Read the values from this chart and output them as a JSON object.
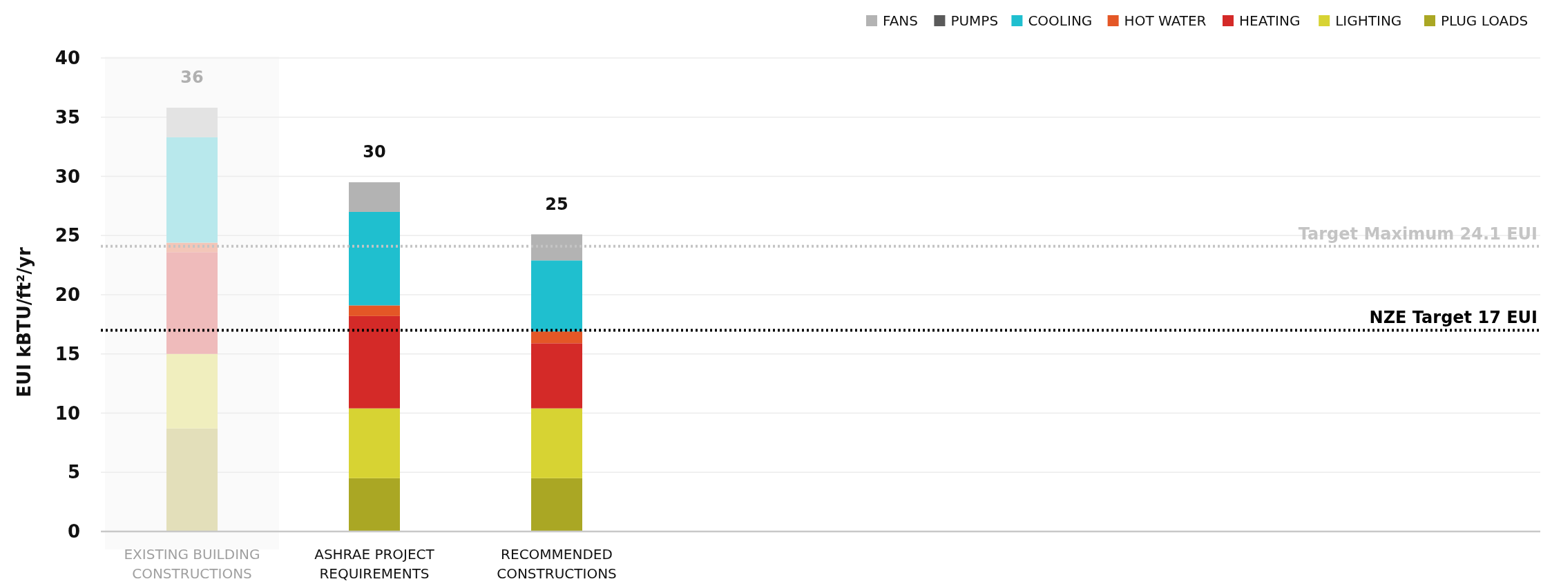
{
  "chart_data": {
    "type": "bar",
    "stacked": true,
    "ylabel": "EUI kBTU/ft²/yr",
    "categories": [
      "EXISTING BUILDING CONSTRUCTIONS",
      "ASHRAE PROJECT REQUIREMENTS",
      "RECOMMENDED CONSTRUCTIONS"
    ],
    "series": [
      {
        "name": "PLUG LOADS",
        "color": "#aaa724",
        "colors": [
          "#e3dfba",
          "#aaa724",
          "#aaa724"
        ],
        "values": [
          8.7,
          4.5,
          4.5
        ]
      },
      {
        "name": "LIGHTING",
        "color": "#d7d333",
        "colors": [
          "#f0eebe",
          "#d7d333",
          "#d7d333"
        ],
        "values": [
          6.3,
          5.9,
          5.9
        ]
      },
      {
        "name": "HEATING",
        "color": "#d42a28",
        "colors": [
          "#efbbbb",
          "#d42a28",
          "#d42a28"
        ],
        "values": [
          8.6,
          7.8,
          5.5
        ]
      },
      {
        "name": "HOT WATER",
        "color": "#e45726",
        "colors": [
          "#f3c6b8",
          "#e45726",
          "#e45726"
        ],
        "values": [
          0.8,
          0.9,
          1.0
        ]
      },
      {
        "name": "COOLING",
        "color": "#1fbfcf",
        "colors": [
          "#b8e8ec",
          "#1fbfcf",
          "#1fbfcf"
        ],
        "values": [
          8.9,
          7.9,
          6.0
        ]
      },
      {
        "name": "PUMPS",
        "color": "#5a5a5a",
        "colors": [
          "#cccccc",
          "#5a5a5a",
          "#5a5a5a"
        ],
        "values": [
          0,
          0,
          0
        ]
      },
      {
        "name": "FANS",
        "color": "#b3b3b3",
        "colors": [
          "#e3e3e3",
          "#b3b3b3",
          "#b3b3b3"
        ],
        "values": [
          2.5,
          2.5,
          2.2
        ]
      }
    ],
    "totals": [
      "36",
      "30",
      "25"
    ],
    "ylim": [
      0,
      40
    ],
    "yticks": [
      0,
      5,
      10,
      15,
      20,
      25,
      30,
      35,
      40
    ],
    "grid": "y",
    "legend": "top right",
    "ref_lines": [
      {
        "axis": "y",
        "value": 24.1,
        "label": "Target Maximum 24.1 EUI",
        "color": "#c4c4c4",
        "line_style": "dotted"
      },
      {
        "axis": "y",
        "value": 17,
        "label": "NZE Target 17 EUI",
        "color": "#000000",
        "line_style": "dotted"
      }
    ]
  }
}
